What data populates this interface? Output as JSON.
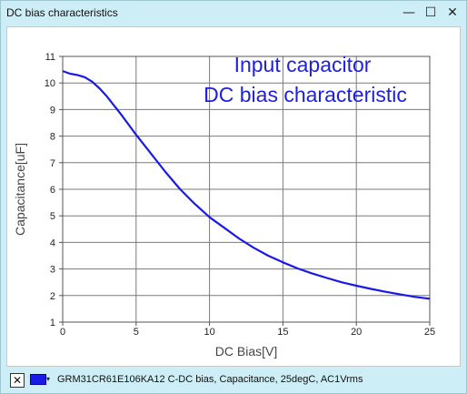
{
  "window": {
    "title": "DC bias characteristics",
    "buttons": {
      "minimize": "—",
      "maximize": "☐",
      "close": "✕"
    }
  },
  "chart_data": {
    "type": "line",
    "title": "Input capacitor",
    "subtitle": "DC bias characteristic",
    "xlabel": "DC Bias[V]",
    "ylabel": "Capacitance[uF]",
    "xlim": [
      0,
      25
    ],
    "ylim": [
      1,
      11
    ],
    "xticks": [
      "0",
      "5",
      "10",
      "15",
      "20",
      "25"
    ],
    "yticks": [
      "1",
      "2",
      "3",
      "4",
      "5",
      "6",
      "7",
      "8",
      "9",
      "10",
      "11"
    ],
    "grid": true,
    "series": [
      {
        "color": "#1a1ae6",
        "x": [
          0,
          0.5,
          1,
          1.5,
          2,
          2.5,
          3,
          4,
          5,
          6,
          7,
          8,
          9,
          10,
          11,
          12,
          13,
          14,
          15,
          16,
          17,
          18,
          19,
          20,
          21,
          22,
          23,
          24,
          25
        ],
        "y": [
          10.45,
          10.35,
          10.3,
          10.22,
          10.05,
          9.8,
          9.5,
          8.8,
          8.05,
          7.35,
          6.65,
          6.0,
          5.45,
          4.95,
          4.55,
          4.15,
          3.8,
          3.5,
          3.25,
          3.02,
          2.83,
          2.66,
          2.5,
          2.37,
          2.25,
          2.14,
          2.04,
          1.95,
          1.88
        ]
      }
    ]
  },
  "statusbar": {
    "checkbox": "✕",
    "swatch_color": "#1a1ae6",
    "dropdown": "▾",
    "legend_text": "GRM31CR61E106KA12  C-DC bias, Capacitance, 25degC, AC1Vrms"
  }
}
